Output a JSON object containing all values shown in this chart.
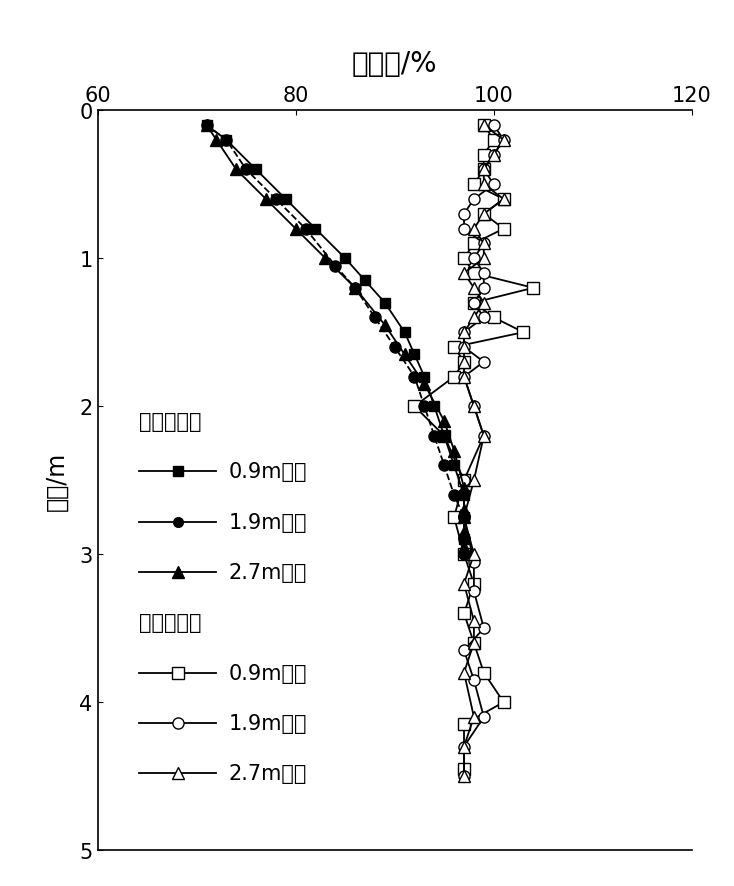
{
  "title": "饱和度/%",
  "ylabel": "深度/m",
  "xlim": [
    60,
    120
  ],
  "ylim": [
    5,
    0
  ],
  "xticks": [
    60,
    80,
    100,
    120
  ],
  "yticks": [
    0,
    1,
    2,
    3,
    4,
    5
  ],
  "before_sq09_x": [
    71,
    73,
    76,
    79,
    82,
    85,
    87,
    89,
    91,
    92,
    93,
    94,
    95,
    96,
    97,
    97,
    97
  ],
  "before_sq09_y": [
    0.1,
    0.2,
    0.4,
    0.6,
    0.8,
    1.0,
    1.15,
    1.3,
    1.5,
    1.65,
    1.8,
    2.0,
    2.2,
    2.4,
    2.6,
    2.75,
    2.9
  ],
  "before_sq19_x": [
    71,
    73,
    75,
    78,
    81,
    84,
    86,
    88,
    90,
    92,
    93,
    94,
    95,
    96,
    97,
    97,
    97
  ],
  "before_sq19_y": [
    0.1,
    0.2,
    0.4,
    0.6,
    0.8,
    1.05,
    1.2,
    1.4,
    1.6,
    1.8,
    2.0,
    2.2,
    2.4,
    2.6,
    2.75,
    2.9,
    3.0
  ],
  "before_sq27_x": [
    71,
    72,
    74,
    77,
    80,
    83,
    86,
    89,
    91,
    93,
    95,
    96,
    97,
    97,
    97,
    97
  ],
  "before_sq27_y": [
    0.1,
    0.2,
    0.4,
    0.6,
    0.8,
    1.0,
    1.2,
    1.45,
    1.65,
    1.85,
    2.1,
    2.3,
    2.55,
    2.7,
    2.85,
    2.95
  ],
  "after_sq09_x": [
    99,
    100,
    99,
    99,
    98,
    101,
    99,
    101,
    98,
    97,
    98,
    104,
    98,
    100,
    103,
    96,
    97,
    96,
    92,
    95,
    97,
    96,
    97,
    98,
    97,
    98,
    99,
    101,
    97,
    97
  ],
  "after_sq09_y": [
    0.1,
    0.2,
    0.3,
    0.4,
    0.5,
    0.6,
    0.7,
    0.8,
    0.9,
    1.0,
    1.1,
    1.2,
    1.3,
    1.4,
    1.5,
    1.6,
    1.7,
    1.8,
    2.0,
    2.2,
    2.5,
    2.75,
    3.0,
    3.2,
    3.4,
    3.6,
    3.8,
    4.0,
    4.15,
    4.45
  ],
  "after_sq19_x": [
    100,
    101,
    100,
    99,
    100,
    98,
    97,
    97,
    99,
    98,
    99,
    99,
    98,
    99,
    97,
    97,
    99,
    97,
    98,
    99,
    97,
    97,
    98,
    98,
    99,
    97,
    98,
    99,
    97,
    97
  ],
  "after_sq19_y": [
    0.1,
    0.2,
    0.3,
    0.4,
    0.5,
    0.6,
    0.7,
    0.8,
    0.9,
    1.0,
    1.1,
    1.2,
    1.3,
    1.4,
    1.5,
    1.6,
    1.7,
    1.8,
    2.0,
    2.2,
    2.5,
    2.75,
    3.05,
    3.25,
    3.5,
    3.65,
    3.85,
    4.1,
    4.3,
    4.5
  ],
  "after_sq27_x": [
    99,
    101,
    100,
    99,
    99,
    101,
    99,
    98,
    99,
    99,
    97,
    98,
    99,
    98,
    97,
    97,
    97,
    97,
    98,
    99,
    98,
    97,
    98,
    97,
    98,
    98,
    97,
    98,
    97,
    97
  ],
  "after_sq27_y": [
    0.1,
    0.2,
    0.3,
    0.4,
    0.5,
    0.6,
    0.7,
    0.8,
    0.9,
    1.0,
    1.1,
    1.2,
    1.3,
    1.4,
    1.5,
    1.6,
    1.7,
    1.8,
    2.0,
    2.2,
    2.5,
    2.75,
    3.0,
    3.2,
    3.45,
    3.6,
    3.8,
    4.1,
    4.3,
    4.5
  ],
  "legend_before_title": "人工浸水前",
  "legend_after_title": "人工浸水后",
  "legend_sq09_before": "0.9m路基",
  "legend_sq19_before": "1.9m路基",
  "legend_sq27_before": "2.7m路基",
  "legend_sq09_after": "0.9m路基",
  "legend_sq19_after": "1.9m路基",
  "legend_sq27_after": "2.7m路基",
  "font_size_title": 20,
  "font_size_label": 17,
  "font_size_legend": 15,
  "font_size_tick": 15
}
